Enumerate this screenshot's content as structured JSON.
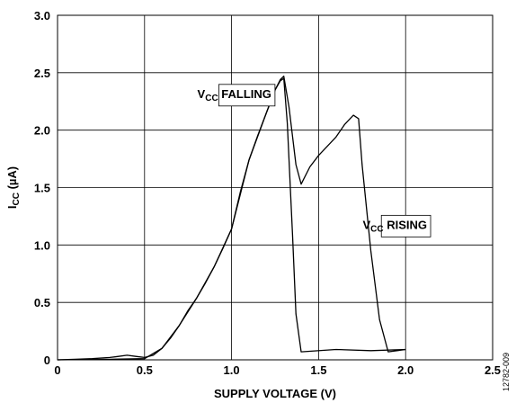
{
  "chart_data": {
    "type": "line",
    "xlabel": "SUPPLY VOLTAGE (V)",
    "ylabel": {
      "main": "I",
      "sub": "CC",
      "rest": " (µA)"
    },
    "xlim": [
      0,
      2.5
    ],
    "ylim": [
      0,
      3.0
    ],
    "xticks": [
      "0",
      "0.5",
      "1.0",
      "1.5",
      "2.0",
      "2.5"
    ],
    "yticks": [
      "0",
      "0.5",
      "1.0",
      "1.5",
      "2.0",
      "2.5",
      "3.0"
    ],
    "grid": true,
    "figure_id": "12782-009",
    "series": [
      {
        "name": "VCC FALLING",
        "x": [
          0.0,
          0.1,
          0.2,
          0.3,
          0.35,
          0.4,
          0.45,
          0.5,
          0.55,
          0.6,
          0.65,
          0.7,
          0.75,
          0.8,
          0.85,
          0.9,
          0.95,
          1.0,
          1.05,
          1.1,
          1.15,
          1.2,
          1.25,
          1.28,
          1.3,
          1.32,
          1.35,
          1.37,
          1.4,
          1.6,
          1.8,
          2.0
        ],
        "y": [
          0.0,
          0.005,
          0.01,
          0.02,
          0.03,
          0.04,
          0.03,
          0.02,
          0.04,
          0.1,
          0.19,
          0.3,
          0.43,
          0.54,
          0.67,
          0.81,
          0.97,
          1.14,
          1.46,
          1.74,
          1.95,
          2.15,
          2.35,
          2.43,
          2.45,
          2.06,
          1.09,
          0.4,
          0.07,
          0.09,
          0.08,
          0.09
        ]
      },
      {
        "name": "VCC RISING",
        "x": [
          0.0,
          0.3,
          0.5,
          0.6,
          0.7,
          0.8,
          0.9,
          1.0,
          1.1,
          1.2,
          1.25,
          1.28,
          1.3,
          1.33,
          1.37,
          1.4,
          1.45,
          1.5,
          1.6,
          1.65,
          1.7,
          1.73,
          1.75,
          1.8,
          1.85,
          1.9,
          1.95,
          2.0
        ],
        "y": [
          0.0,
          0.005,
          0.01,
          0.1,
          0.3,
          0.54,
          0.81,
          1.14,
          1.74,
          2.15,
          2.35,
          2.44,
          2.47,
          2.2,
          1.7,
          1.53,
          1.68,
          1.78,
          1.94,
          2.05,
          2.13,
          2.1,
          1.7,
          0.95,
          0.35,
          0.07,
          0.08,
          0.09
        ]
      }
    ],
    "annotations": [
      {
        "prefix": "V",
        "sub": "CC",
        "text": " FALLING",
        "x": 0.85,
        "y": 2.32
      },
      {
        "prefix": "V",
        "sub": "CC",
        "text": " RISING",
        "x": 1.8,
        "y": 1.18
      }
    ]
  }
}
